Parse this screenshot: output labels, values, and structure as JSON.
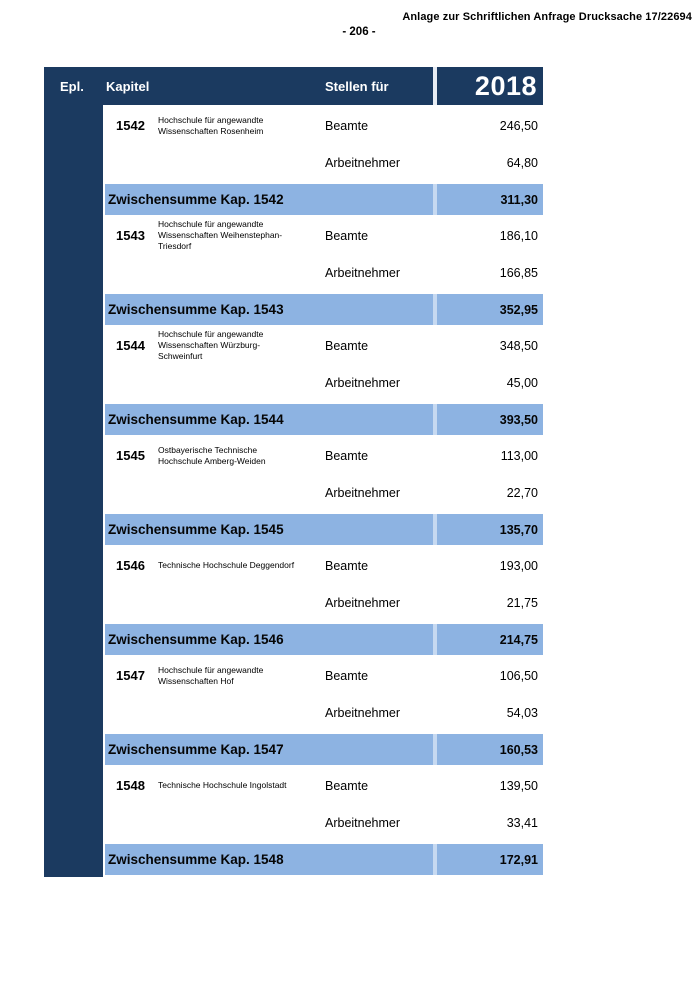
{
  "page_header": {
    "annotation": "Anlage zur Schriftlichen Anfrage Drucksache 17/22694",
    "page_number": "- 206 -"
  },
  "colors": {
    "navy": "#1b3a60",
    "light_blue": "#8db3e2",
    "subtotal_divider": "#c6d9f1"
  },
  "table": {
    "columns": {
      "epl": "Epl.",
      "kapitel": "Kapitel",
      "stellen_fuer": "Stellen für",
      "year": "2018"
    },
    "sections": [
      {
        "kapitel": "1542",
        "institution": "Hochschule für angewandte\nWissenschaften Rosenheim",
        "rows": [
          {
            "label": "Beamte",
            "value": "246,50"
          },
          {
            "label": "Arbeitnehmer",
            "value": "64,80"
          }
        ],
        "subtotal_label": "Zwischensumme Kap. 1542",
        "subtotal_value": "311,30"
      },
      {
        "kapitel": "1543",
        "institution": "Hochschule für angewandte\nWissenschaften Weihenstephan-\nTriesdorf",
        "rows": [
          {
            "label": "Beamte",
            "value": "186,10"
          },
          {
            "label": "Arbeitnehmer",
            "value": "166,85"
          }
        ],
        "subtotal_label": "Zwischensumme Kap. 1543",
        "subtotal_value": "352,95"
      },
      {
        "kapitel": "1544",
        "institution": "Hochschule für angewandte\nWissenschaften Würzburg-\nSchweinfurt",
        "rows": [
          {
            "label": "Beamte",
            "value": "348,50"
          },
          {
            "label": "Arbeitnehmer",
            "value": "45,00"
          }
        ],
        "subtotal_label": "Zwischensumme Kap. 1544",
        "subtotal_value": "393,50"
      },
      {
        "kapitel": "1545",
        "institution": "Ostbayerische Technische\nHochschule Amberg-Weiden",
        "rows": [
          {
            "label": "Beamte",
            "value": "113,00"
          },
          {
            "label": "Arbeitnehmer",
            "value": "22,70"
          }
        ],
        "subtotal_label": "Zwischensumme Kap. 1545",
        "subtotal_value": "135,70"
      },
      {
        "kapitel": "1546",
        "institution": "Technische Hochschule Deggendorf",
        "rows": [
          {
            "label": "Beamte",
            "value": "193,00"
          },
          {
            "label": "Arbeitnehmer",
            "value": "21,75"
          }
        ],
        "subtotal_label": "Zwischensumme Kap. 1546",
        "subtotal_value": "214,75"
      },
      {
        "kapitel": "1547",
        "institution": "Hochschule für angewandte\nWissenschaften Hof",
        "rows": [
          {
            "label": "Beamte",
            "value": "106,50"
          },
          {
            "label": "Arbeitnehmer",
            "value": "54,03"
          }
        ],
        "subtotal_label": "Zwischensumme Kap. 1547",
        "subtotal_value": "160,53"
      },
      {
        "kapitel": "1548",
        "institution": "Technische Hochschule Ingolstadt",
        "rows": [
          {
            "label": "Beamte",
            "value": "139,50"
          },
          {
            "label": "Arbeitnehmer",
            "value": "33,41"
          }
        ],
        "subtotal_label": "Zwischensumme Kap. 1548",
        "subtotal_value": "172,91"
      }
    ]
  }
}
